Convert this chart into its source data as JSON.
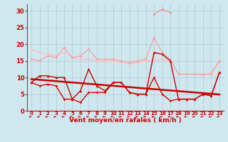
{
  "x": [
    0,
    1,
    2,
    3,
    4,
    5,
    6,
    7,
    8,
    9,
    10,
    11,
    12,
    13,
    14,
    15,
    16,
    17,
    18,
    19,
    20,
    21,
    22,
    23
  ],
  "background_color": "#cfe8f0",
  "grid_color": "#aacccc",
  "xlabel": "Vent moyen/en rafales ( km/h )",
  "xlabel_color": "#cc0000",
  "ylim": [
    0,
    32
  ],
  "yticks": [
    0,
    5,
    10,
    15,
    20,
    25,
    30
  ],
  "line1": {
    "y": [
      18.5,
      17.5,
      17.0,
      16.5,
      17.5,
      16.0,
      15.5,
      15.5,
      15.0,
      15.0,
      15.0,
      14.5,
      14.0,
      14.5,
      15.0,
      15.0,
      15.5,
      15.0,
      11.0,
      11.0,
      11.0,
      10.5,
      11.5,
      15.0
    ],
    "color": "#ffbbbb",
    "marker": "D",
    "markersize": 1.8,
    "linewidth": 0.8
  },
  "line2": {
    "y": [
      15.5,
      15.0,
      16.5,
      16.0,
      19.0,
      16.0,
      16.5,
      18.5,
      15.5,
      15.5,
      15.5,
      15.0,
      14.5,
      15.0,
      15.5,
      22.0,
      17.5,
      15.5,
      11.0,
      11.0,
      11.0,
      11.0,
      11.0,
      15.0
    ],
    "color": "#ff9999",
    "marker": "D",
    "markersize": 1.8,
    "linewidth": 0.8
  },
  "line3": {
    "y": [
      null,
      null,
      null,
      null,
      null,
      null,
      null,
      null,
      null,
      null,
      null,
      null,
      null,
      null,
      null,
      29.0,
      30.5,
      29.5,
      null,
      null,
      null,
      null,
      null,
      null
    ],
    "color": "#ff8888",
    "marker": "D",
    "markersize": 1.8,
    "linewidth": 0.8
  },
  "line4_dark": {
    "y": [
      8.5,
      10.5,
      10.5,
      10.0,
      10.0,
      3.5,
      6.0,
      12.5,
      7.5,
      6.0,
      8.5,
      8.5,
      5.5,
      5.0,
      5.0,
      17.5,
      17.0,
      15.0,
      3.5,
      3.5,
      3.5,
      5.0,
      4.5,
      11.5
    ],
    "color": "#cc0000",
    "marker": "^",
    "markersize": 2.5,
    "linewidth": 1.0
  },
  "line5_dark": {
    "y": [
      8.5,
      7.5,
      8.0,
      7.5,
      3.5,
      3.5,
      2.5,
      5.5,
      5.5,
      5.5,
      8.5,
      8.5,
      5.5,
      5.0,
      5.0,
      10.0,
      5.0,
      3.0,
      3.5,
      3.5,
      3.5,
      5.0,
      4.5,
      11.5
    ],
    "color": "#dd0000",
    "marker": "D",
    "markersize": 1.8,
    "linewidth": 1.0
  },
  "line6_trend": {
    "y": [
      9.5,
      9.3,
      9.1,
      8.9,
      8.7,
      8.5,
      8.3,
      8.1,
      7.9,
      7.7,
      7.5,
      7.3,
      7.1,
      6.9,
      6.7,
      6.5,
      6.3,
      6.1,
      5.9,
      5.7,
      5.5,
      5.3,
      5.1,
      4.9
    ],
    "color": "#cc0000",
    "linewidth": 1.8
  },
  "arrow_color": "#cc0000",
  "tick_color": "#cc0000",
  "tick_fontsize": 5,
  "xlabel_fontsize": 6.5
}
